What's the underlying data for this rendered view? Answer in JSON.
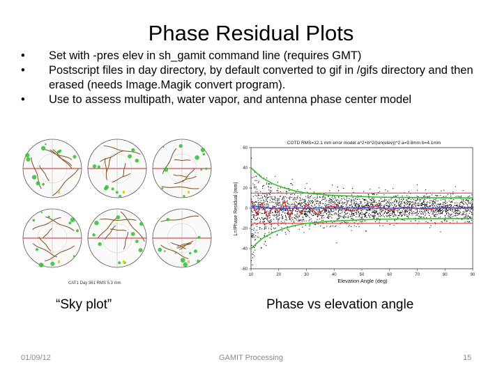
{
  "slide": {
    "title": "Phase Residual Plots",
    "bullets": [
      "Set with -pres elev in sh_gamit command line (requires GMT)",
      "Postscript files in day directory, by default converted to gif in /gifs directory and then erased (needs Image.Magik convert program).",
      "Use to assess multipath, water vapor, and antenna phase center model"
    ],
    "bullet_symbol": "•"
  },
  "sky_figure": {
    "footer_label": "CAT1 Day 361 RMS 5.3 mm",
    "colors": {
      "track": "#8b5a2b",
      "good": "#2fbf2f",
      "axis": "#d02020",
      "warn": "#e6d21a"
    }
  },
  "phase_figure": {
    "header": "COTD RMS=12.1 mm error model a^2+b^2/(sin(elev))^2 a=9.8mm b=4.1mm",
    "ylabel": "L=/Phase Residual (mm)",
    "xlabel": "Elevation Angle (deg)",
    "colors": {
      "scatter": "#000000",
      "mean": "#e03030",
      "rms": "#3050e0",
      "model": "#2fbf2f"
    }
  },
  "chart_data": {
    "type": "scatter",
    "title": "COTD RMS=12.1 mm error model a^2+b^2/(sin(elev))^2 a=9.8mm b=4.1mm",
    "xlabel": "Elevation Angle (deg)",
    "ylabel": "L=/Phase Residual (mm)",
    "xlim": [
      10,
      90
    ],
    "ylim": [
      -60,
      60
    ],
    "x_ticks": [
      10,
      20,
      30,
      40,
      50,
      60,
      70,
      80,
      90
    ],
    "y_ticks": [
      60,
      40,
      20,
      0,
      -20,
      -40,
      -60
    ],
    "series": [
      {
        "x": [
          10,
          14,
          18,
          22,
          26,
          30,
          34,
          38,
          42,
          46,
          50,
          55,
          60,
          65,
          70,
          75,
          80,
          85,
          90
        ],
        "values": [
          40,
          30,
          24,
          20,
          17,
          15,
          14,
          13,
          12.5,
          12,
          11.5,
          11,
          10.8,
          10.6,
          10.5,
          10.4,
          10.3,
          10.2,
          10.2
        ]
      },
      {
        "x": [
          10,
          14,
          18,
          22,
          26,
          30,
          34,
          38,
          42,
          46,
          50,
          55,
          60,
          65,
          70,
          75,
          80,
          85,
          90
        ],
        "values": [
          -40,
          -30,
          -24,
          -20,
          -17,
          -15,
          -14,
          -13,
          -12.5,
          -12,
          -11.5,
          -11,
          -10.8,
          -10.6,
          -10.5,
          -10.4,
          -10.3,
          -10.2,
          -10.2
        ]
      },
      {
        "x": [
          10,
          12,
          14,
          16,
          18,
          20,
          22,
          24,
          26,
          28,
          30,
          34,
          38,
          42,
          46,
          50,
          55,
          60,
          65,
          70,
          75,
          80,
          85,
          90
        ],
        "values": [
          8,
          -6,
          5,
          -9,
          2,
          -4,
          7,
          -8,
          3,
          -5,
          4,
          -6,
          2,
          1,
          -3,
          0,
          2,
          -2,
          1,
          0,
          -1,
          1,
          0,
          1
        ]
      },
      {
        "x": [
          10,
          14,
          18,
          22,
          26,
          30,
          34,
          38,
          42,
          46,
          50,
          55,
          60,
          65,
          70,
          75,
          80,
          85,
          90
        ],
        "values": [
          2,
          1,
          0,
          -1,
          0.5,
          -0.5,
          0.3,
          -0.2,
          0.1,
          0,
          0.2,
          -0.1,
          0,
          0.1,
          -0.1,
          0,
          0.1,
          0,
          0.1
        ]
      }
    ],
    "reference_lines": [
      15,
      -15,
      0
    ]
  },
  "captions": {
    "sky": "“Sky plot”",
    "phase": "Phase vs elevation angle"
  },
  "footer": {
    "date": "01/09/12",
    "center": "GAMIT Processing",
    "page": "15"
  }
}
